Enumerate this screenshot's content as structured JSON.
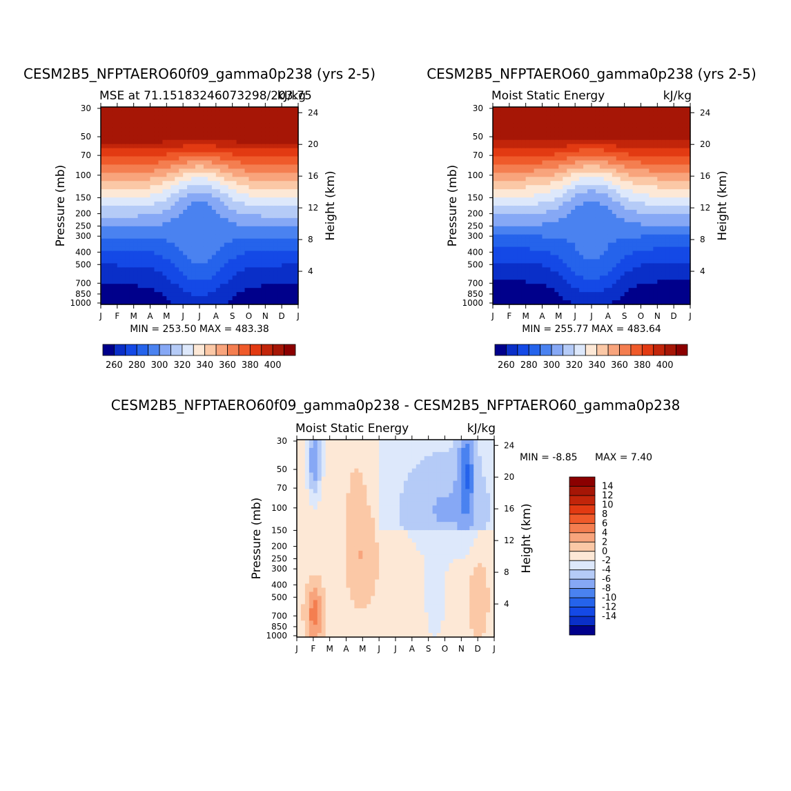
{
  "chart_data": [
    {
      "type": "contour",
      "title": "CESM2B5_NFPTAERO60f09_gamma0p238 (yrs 2-5)",
      "subtitle_left": "MSE at 71.15183246073298/203.75",
      "subtitle_right": "kJ/kg",
      "xlabel": "",
      "ylabel": "Pressure (mb)",
      "ylabel_right": "Height (km)",
      "x_ticks": [
        "J",
        "F",
        "M",
        "A",
        "M",
        "J",
        "J",
        "A",
        "S",
        "O",
        "N",
        "D",
        "J"
      ],
      "y_ticks": [
        "30",
        "50",
        "70",
        "100",
        "150",
        "200",
        "250",
        "300",
        "400",
        "500",
        "700",
        "850",
        "1000"
      ],
      "y_ticks_right": [
        "24",
        "20",
        "16",
        "12",
        "8",
        "4"
      ],
      "minmax": "MIN = 253.50 MAX = 483.38",
      "min": 253.5,
      "max": 483.38,
      "levels": [
        250,
        260,
        270,
        280,
        290,
        300,
        310,
        320,
        330,
        340,
        350,
        360,
        370,
        380,
        390,
        400,
        410
      ],
      "colorbar_labels": [
        "260",
        "280",
        "300",
        "320",
        "340",
        "360",
        "380",
        "400"
      ]
    },
    {
      "type": "contour",
      "title": "CESM2B5_NFPTAERO60_gamma0p238 (yrs 2-5)",
      "subtitle_left": "Moist Static Energy",
      "subtitle_right": "kJ/kg",
      "xlabel": "",
      "ylabel": "Pressure (mb)",
      "ylabel_right": "Height (km)",
      "x_ticks": [
        "J",
        "F",
        "M",
        "A",
        "M",
        "J",
        "J",
        "A",
        "S",
        "O",
        "N",
        "D",
        "J"
      ],
      "y_ticks": [
        "30",
        "50",
        "70",
        "100",
        "150",
        "200",
        "250",
        "300",
        "400",
        "500",
        "700",
        "850",
        "1000"
      ],
      "y_ticks_right": [
        "24",
        "20",
        "16",
        "12",
        "8",
        "4"
      ],
      "minmax": "MIN = 255.77 MAX = 483.64",
      "min": 255.77,
      "max": 483.64,
      "levels": [
        250,
        260,
        270,
        280,
        290,
        300,
        310,
        320,
        330,
        340,
        350,
        360,
        370,
        380,
        390,
        400,
        410
      ],
      "colorbar_labels": [
        "260",
        "280",
        "300",
        "320",
        "340",
        "360",
        "380",
        "400"
      ]
    },
    {
      "type": "contour",
      "title": "CESM2B5_NFPTAERO60f09_gamma0p238 - CESM2B5_NFPTAERO60_gamma0p238",
      "subtitle_left": "Moist Static Energy",
      "subtitle_right": "kJ/kg",
      "xlabel": "",
      "ylabel": "Pressure (mb)",
      "ylabel_right": "Height (km)",
      "x_ticks": [
        "J",
        "F",
        "M",
        "A",
        "M",
        "J",
        "J",
        "A",
        "S",
        "O",
        "N",
        "D",
        "J"
      ],
      "y_ticks": [
        "30",
        "50",
        "70",
        "100",
        "150",
        "200",
        "250",
        "300",
        "400",
        "500",
        "700",
        "850",
        "1000"
      ],
      "y_ticks_right": [
        "24",
        "20",
        "16",
        "12",
        "8",
        "4"
      ],
      "minmax_min": "MIN =   -8.85",
      "minmax_max": "MAX =    7.40",
      "min": -8.85,
      "max": 7.4,
      "levels": [
        -16,
        -14,
        -12,
        -10,
        -8,
        -6,
        -4,
        -2,
        0,
        2,
        4,
        6,
        8,
        10,
        12,
        14,
        16
      ],
      "colorbar_labels": [
        "14",
        "12",
        "10",
        "8",
        "6",
        "4",
        "2",
        "0",
        "-2",
        "-4",
        "-6",
        "-8",
        "-10",
        "-12",
        "-14"
      ]
    }
  ],
  "colors": {
    "abs_scale": [
      "#00008b",
      "#0a2fc8",
      "#1449e6",
      "#2563eb",
      "#4a82f0",
      "#86a8f5",
      "#b5cbf7",
      "#dde8fb",
      "#fde8d6",
      "#fbc8a6",
      "#f8a47c",
      "#f47e50",
      "#ef5a2a",
      "#e23a12",
      "#c2250a",
      "#a61606",
      "#8b0000"
    ],
    "diff_scale": [
      "#00008b",
      "#0a2fc8",
      "#1449e6",
      "#2563eb",
      "#4a82f0",
      "#86a8f5",
      "#b5cbf7",
      "#dde8fb",
      "#fde8d6",
      "#fbc8a6",
      "#f8a47c",
      "#f47e50",
      "#ef5a2a",
      "#e23a12",
      "#c2250a",
      "#a61606",
      "#8b0000"
    ]
  }
}
